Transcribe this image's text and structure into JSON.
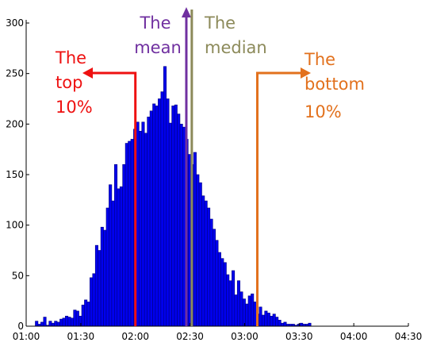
{
  "chart_data": {
    "type": "bar",
    "xlabel": "",
    "ylabel": "",
    "ylim": [
      0,
      300
    ],
    "yticks": [
      0,
      50,
      100,
      150,
      200,
      250,
      300
    ],
    "xlim_minutes": [
      60,
      270
    ],
    "xticks": [
      "01:00",
      "01:30",
      "02:00",
      "02:30",
      "03:00",
      "03:30",
      "04:00",
      "04:30"
    ],
    "bin_start": "01:05",
    "bin_width_minutes": 1.5,
    "values": [
      5,
      2,
      4,
      9,
      1,
      5,
      3,
      5,
      4,
      7,
      8,
      10,
      9,
      8,
      16,
      15,
      10,
      21,
      26,
      24,
      48,
      52,
      80,
      75,
      98,
      95,
      117,
      140,
      124,
      160,
      136,
      138,
      160,
      181,
      183,
      185,
      195,
      202,
      193,
      202,
      191,
      207,
      213,
      220,
      218,
      225,
      232,
      257,
      225,
      201,
      218,
      219,
      210,
      200,
      197,
      185,
      170,
      160,
      172,
      150,
      142,
      129,
      124,
      117,
      106,
      96,
      85,
      73,
      67,
      63,
      51,
      45,
      55,
      31,
      45,
      34,
      27,
      22,
      30,
      32,
      24,
      12,
      19,
      11,
      15,
      13,
      10,
      12,
      9,
      6,
      3,
      4,
      2,
      2,
      2,
      1,
      2,
      3,
      2,
      2,
      3
    ]
  },
  "annotations": {
    "top10": {
      "lines": [
        "The",
        "top",
        "10%"
      ],
      "time": "02:00",
      "color": "#ee1111"
    },
    "mean": {
      "lines": [
        "The",
        "mean"
      ],
      "time": "02:28",
      "color": "#7030a0"
    },
    "median": {
      "lines": [
        "The",
        "median"
      ],
      "time": "02:31",
      "color": "#8c8a5a"
    },
    "bottom10": {
      "lines": [
        "The",
        "bottom",
        "10%"
      ],
      "time": "03:07",
      "color": "#e2711d"
    }
  },
  "colors": {
    "bar": "#0000ee",
    "bar_edge": "#000080",
    "axis": "#000000"
  }
}
